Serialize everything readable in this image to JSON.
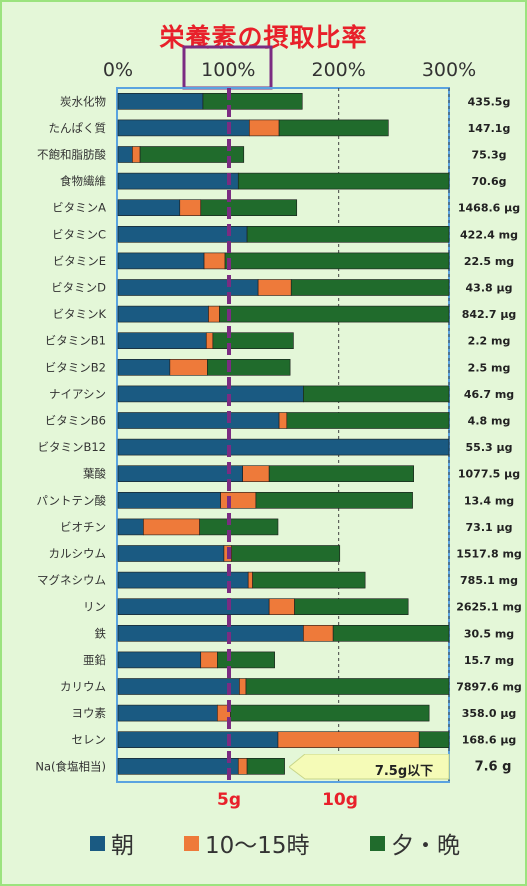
{
  "title": "栄養素の摂取比率",
  "colors": {
    "morning": "#1a5a82",
    "midday": "#ee7a3a",
    "evening": "#206b2c",
    "title": "#e8202a",
    "marker": "#7b2c82",
    "callout": "#f5fbb7"
  },
  "legend": [
    {
      "label": "朝",
      "color": "#1a5a82"
    },
    {
      "label": "10～15時",
      "color": "#ee7a3a"
    },
    {
      "label": "夕・晩",
      "color": "#206b2c"
    }
  ],
  "callout": {
    "text": "7.5g以下"
  },
  "chart_data": {
    "type": "bar",
    "orientation": "horizontal",
    "stacked": true,
    "title": "栄養素の摂取比率",
    "xlim": [
      0,
      300
    ],
    "x_ticks": [
      "0%",
      "100%",
      "200%",
      "300%"
    ],
    "reference_line": {
      "value": 100
    },
    "sodium_ticks": [
      "5g",
      "10g"
    ],
    "categories": [
      "炭水化物",
      "たんぱく質",
      "不飽和脂肪酸",
      "食物繊維",
      "ビタミンA",
      "ビタミンC",
      "ビタミンE",
      "ビタミンD",
      "ビタミンK",
      "ビタミンB1",
      "ビタミンB2",
      "ナイアシン",
      "ビタミンB6",
      "ビタミンB12",
      "葉酸",
      "パントテン酸",
      "ビオチン",
      "カルシウム",
      "マグネシウム",
      "リン",
      "鉄",
      "亜鉛",
      "カリウム",
      "ヨウ素",
      "セレン",
      "Na(食塩相当)"
    ],
    "totals": [
      "435.5g",
      "147.1g",
      "75.3g",
      "70.6g",
      "1468.6 μg",
      "422.4 mg",
      "22.5 mg",
      "43.8 μg",
      "842.7 μg",
      "2.2 mg",
      "2.5 mg",
      "46.7 mg",
      "4.8 mg",
      "55.3 μg",
      "1077.5 μg",
      "13.4 mg",
      "73.1 μg",
      "1517.8 mg",
      "785.1 mg",
      "2625.1 mg",
      "30.5 mg",
      "15.7 mg",
      "7897.6 mg",
      "358.0 μg",
      "168.6 μg",
      "7.6 g"
    ],
    "series": [
      {
        "name": "朝",
        "values": [
          77,
          119,
          13,
          109,
          56,
          117,
          78,
          127,
          82,
          80,
          47,
          168,
          146,
          300,
          113,
          93,
          23,
          96,
          118,
          137,
          168,
          75,
          110,
          90,
          145,
          109
        ]
      },
      {
        "name": "10～15時",
        "values": [
          0,
          27,
          7,
          0,
          19,
          0,
          19,
          30,
          10,
          6,
          34,
          0,
          7,
          0,
          24,
          32,
          51,
          7,
          4,
          23,
          27,
          15,
          6,
          12,
          128,
          8
        ]
      },
      {
        "name": "夕・晩",
        "values": [
          90,
          99,
          94,
          191,
          87,
          183,
          203,
          143,
          208,
          73,
          75,
          132,
          147,
          0,
          131,
          142,
          71,
          98,
          102,
          103,
          105,
          52,
          184,
          180,
          27,
          34
        ]
      }
    ]
  }
}
